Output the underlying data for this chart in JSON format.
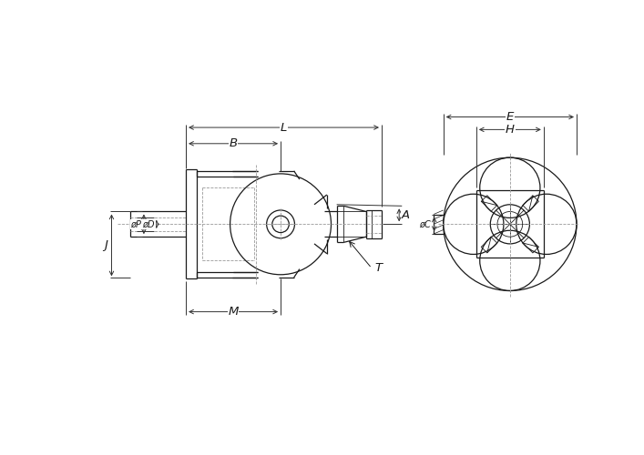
{
  "bg_color": "#ffffff",
  "line_color": "#1a1a1a",
  "dim_color": "#333333",
  "dash_color": "#999999",
  "fig_width": 7.07,
  "fig_height": 5.0,
  "dpi": 100,
  "labels": {
    "L": "L",
    "B": "B",
    "A": "A",
    "M": "M",
    "J": "J",
    "phiP": "øP",
    "phiD": "øD",
    "T": "T",
    "phiC": "øC",
    "E": "E",
    "H": "H"
  }
}
